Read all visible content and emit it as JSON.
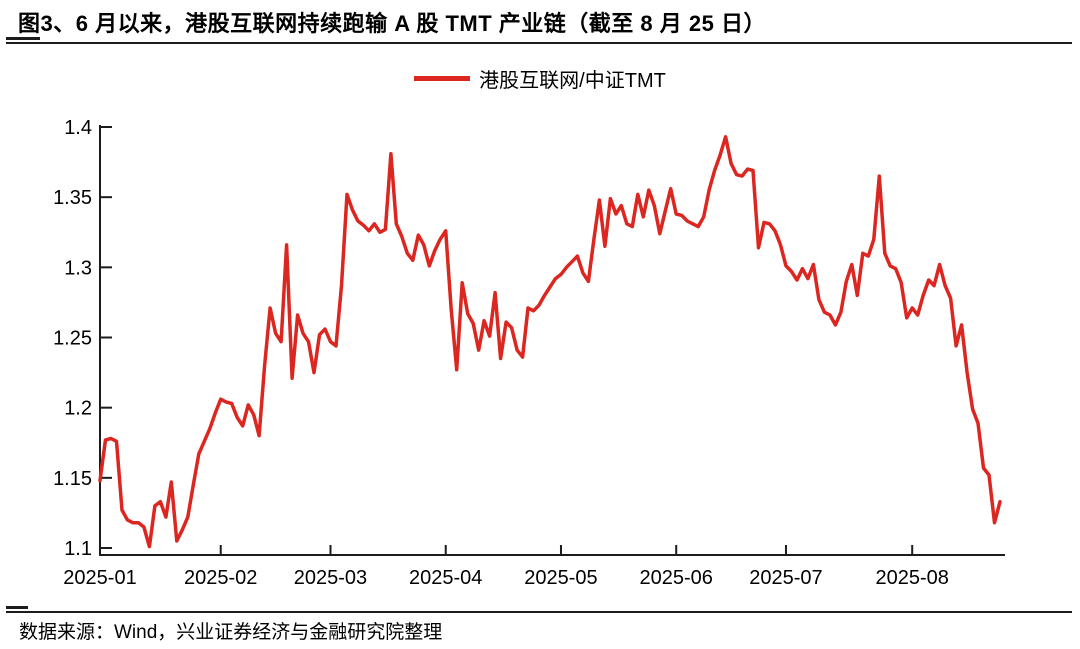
{
  "title": "图3、6 月以来，港股互联网持续跑输 A 股 TMT 产业链（截至 8 月 25 日）",
  "legend": {
    "label": "港股互联网/中证TMT"
  },
  "footer": {
    "source": "数据来源：Wind，兴业证券经济与金融研究院整理"
  },
  "chart_data": {
    "type": "line",
    "title": "港股互联网/中证TMT",
    "series_name": "港股互联网/中证TMT",
    "line_color": "#DC2620",
    "axis_color": "#1c1c1c",
    "grid": false,
    "legend_position": "top-center",
    "ylim": [
      1.1,
      1.4
    ],
    "yticks": [
      1.1,
      1.15,
      1.2,
      1.25,
      1.3,
      1.35,
      1.4
    ],
    "ytick_labels": [
      "1.1",
      "1.15",
      "1.2",
      "1.25",
      "1.3",
      "1.35",
      "1.4"
    ],
    "xtick_labels": [
      "2025-01",
      "2025-02",
      "2025-03",
      "2025-04",
      "2025-05",
      "2025-06",
      "2025-07",
      "2025-08"
    ],
    "month_start_indices": [
      0,
      22,
      42,
      63,
      84,
      105,
      125,
      148
    ],
    "values": [
      1.148,
      1.177,
      1.178,
      1.176,
      1.127,
      1.12,
      1.118,
      1.118,
      1.115,
      1.101,
      1.13,
      1.133,
      1.122,
      1.147,
      1.105,
      1.113,
      1.122,
      1.145,
      1.167,
      1.176,
      1.185,
      1.196,
      1.206,
      1.204,
      1.203,
      1.193,
      1.187,
      1.202,
      1.195,
      1.18,
      1.23,
      1.271,
      1.253,
      1.247,
      1.316,
      1.221,
      1.266,
      1.253,
      1.247,
      1.225,
      1.252,
      1.256,
      1.247,
      1.244,
      1.287,
      1.352,
      1.341,
      1.333,
      1.33,
      1.326,
      1.331,
      1.325,
      1.327,
      1.381,
      1.331,
      1.322,
      1.31,
      1.305,
      1.323,
      1.316,
      1.301,
      1.312,
      1.32,
      1.326,
      1.27,
      1.227,
      1.289,
      1.267,
      1.26,
      1.241,
      1.262,
      1.251,
      1.282,
      1.235,
      1.261,
      1.257,
      1.241,
      1.236,
      1.271,
      1.269,
      1.273,
      1.28,
      1.286,
      1.292,
      1.295,
      1.3,
      1.304,
      1.308,
      1.296,
      1.29,
      1.32,
      1.348,
      1.315,
      1.349,
      1.338,
      1.344,
      1.331,
      1.329,
      1.352,
      1.336,
      1.355,
      1.344,
      1.324,
      1.34,
      1.356,
      1.338,
      1.337,
      1.333,
      1.331,
      1.329,
      1.336,
      1.355,
      1.369,
      1.38,
      1.393,
      1.374,
      1.366,
      1.365,
      1.37,
      1.369,
      1.314,
      1.332,
      1.331,
      1.326,
      1.316,
      1.301,
      1.297,
      1.291,
      1.299,
      1.292,
      1.302,
      1.277,
      1.268,
      1.266,
      1.259,
      1.268,
      1.29,
      1.302,
      1.28,
      1.31,
      1.308,
      1.32,
      1.365,
      1.31,
      1.301,
      1.299,
      1.289,
      1.264,
      1.271,
      1.266,
      1.28,
      1.291,
      1.287,
      1.302,
      1.287,
      1.278,
      1.244,
      1.259,
      1.225,
      1.199,
      1.189,
      1.157,
      1.152,
      1.118,
      1.133
    ]
  }
}
